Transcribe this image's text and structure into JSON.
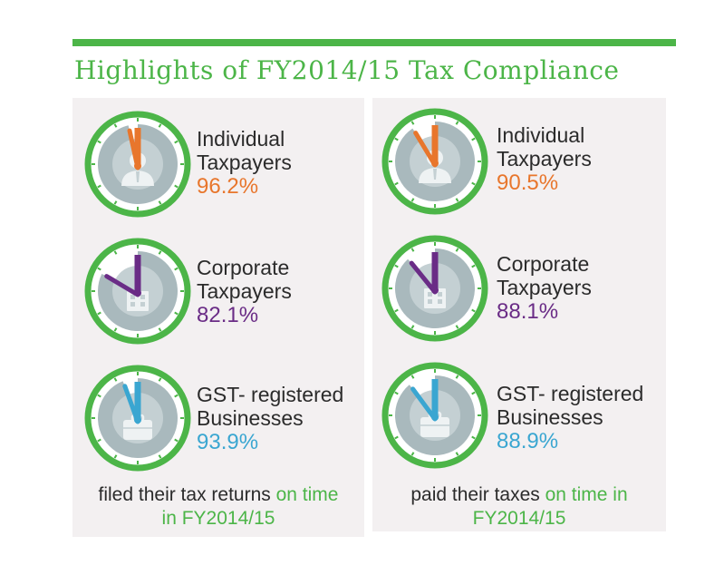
{
  "title": "Highlights of FY2014/15 Tax Compliance",
  "colors": {
    "green": "#4cb548",
    "orange": "#e8762c",
    "purple": "#6a2c86",
    "blue": "#3aa6d1",
    "panel": "#f3f0f1",
    "clock_face": "#a9b9bd"
  },
  "left_panel": {
    "items": [
      {
        "line1": "Individual",
        "line2": "Taxpayers",
        "pct": "96.2%",
        "icon": "person-icon"
      },
      {
        "line1": "Corporate",
        "line2": "Taxpayers",
        "pct": "82.1%",
        "icon": "building-icon"
      },
      {
        "line1": "GST- registered",
        "line2": "Businesses",
        "pct": "93.9%",
        "icon": "briefcase-icon"
      }
    ],
    "caption_plain_1": "filed their tax returns ",
    "caption_green_1": "on time",
    "caption_green_2": "in FY2014/15"
  },
  "right_panel": {
    "items": [
      {
        "line1": "Individual",
        "line2": "Taxpayers",
        "pct": "90.5%",
        "icon": "person-icon"
      },
      {
        "line1": "Corporate",
        "line2": "Taxpayers",
        "pct": "88.1%",
        "icon": "building-icon"
      },
      {
        "line1": "GST- registered",
        "line2": "Businesses",
        "pct": "88.9%",
        "icon": "briefcase-icon"
      }
    ],
    "caption_plain_1": "paid their taxes ",
    "caption_green_1": "on time in",
    "caption_green_2": "FY2014/15"
  }
}
